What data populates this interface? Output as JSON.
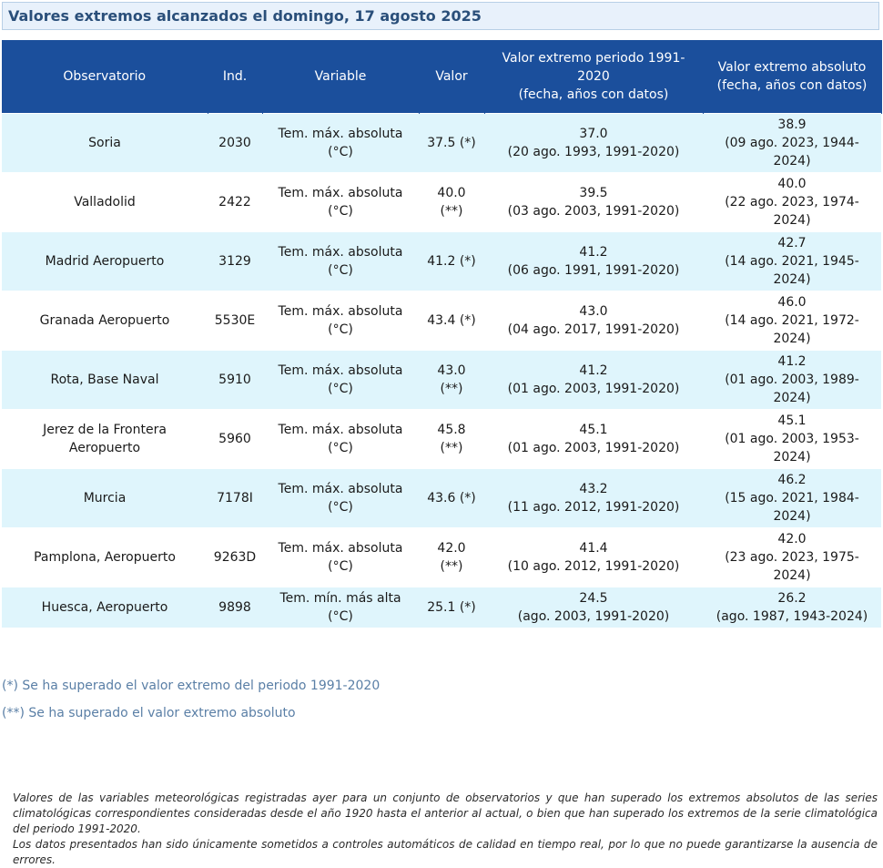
{
  "page_title": "Valores extremos alcanzados el domingo, 17 agosto 2025",
  "table": {
    "headers": {
      "observatorio": "Observatorio",
      "ind": "Ind.",
      "variable": "Variable",
      "valor": "Valor",
      "periodo_line1": "Valor extremo periodo 1991-",
      "periodo_line2": "2020",
      "periodo_line3": "(fecha, años con datos)",
      "absoluto_line1": "Valor extremo absoluto",
      "absoluto_line2": "(fecha, años con datos)"
    },
    "rows": [
      {
        "obs": [
          "Soria"
        ],
        "ind": "2030",
        "var": [
          "Tem. máx. absoluta",
          "(°C)"
        ],
        "valor": [
          "37.5 (*)"
        ],
        "periodo": [
          "37.0",
          "(20 ago. 1993, 1991-2020)"
        ],
        "absoluto": [
          "38.9",
          "(09 ago. 2023, 1944-",
          "2024)"
        ]
      },
      {
        "obs": [
          "Valladolid"
        ],
        "ind": "2422",
        "var": [
          "Tem. máx. absoluta",
          "(°C)"
        ],
        "valor": [
          "40.0",
          "(**)"
        ],
        "periodo": [
          "39.5",
          "(03 ago. 2003, 1991-2020)"
        ],
        "absoluto": [
          "40.0",
          "(22 ago. 2023, 1974-",
          "2024)"
        ]
      },
      {
        "obs": [
          "Madrid Aeropuerto"
        ],
        "ind": "3129",
        "var": [
          "Tem. máx. absoluta",
          "(°C)"
        ],
        "valor": [
          "41.2 (*)"
        ],
        "periodo": [
          "41.2",
          "(06 ago. 1991, 1991-2020)"
        ],
        "absoluto": [
          "42.7",
          "(14 ago. 2021, 1945-",
          "2024)"
        ]
      },
      {
        "obs": [
          "Granada Aeropuerto"
        ],
        "ind": "5530E",
        "var": [
          "Tem. máx. absoluta",
          "(°C)"
        ],
        "valor": [
          "43.4 (*)"
        ],
        "periodo": [
          "43.0",
          "(04 ago. 2017, 1991-2020)"
        ],
        "absoluto": [
          "46.0",
          "(14 ago. 2021, 1972-",
          "2024)"
        ]
      },
      {
        "obs": [
          "Rota, Base Naval"
        ],
        "ind": "5910",
        "var": [
          "Tem. máx. absoluta",
          "(°C)"
        ],
        "valor": [
          "43.0",
          "(**)"
        ],
        "periodo": [
          "41.2",
          "(01 ago. 2003, 1991-2020)"
        ],
        "absoluto": [
          "41.2",
          "(01 ago. 2003, 1989-",
          "2024)"
        ]
      },
      {
        "obs": [
          "Jerez de la Frontera",
          "Aeropuerto"
        ],
        "ind": "5960",
        "var": [
          "Tem. máx. absoluta",
          "(°C)"
        ],
        "valor": [
          "45.8",
          "(**)"
        ],
        "periodo": [
          "45.1",
          "(01 ago. 2003, 1991-2020)"
        ],
        "absoluto": [
          "45.1",
          "(01 ago. 2003, 1953-",
          "2024)"
        ]
      },
      {
        "obs": [
          "Murcia"
        ],
        "ind": "7178I",
        "var": [
          "Tem. máx. absoluta",
          "(°C)"
        ],
        "valor": [
          "43.6 (*)"
        ],
        "periodo": [
          "43.2",
          "(11 ago. 2012, 1991-2020)"
        ],
        "absoluto": [
          "46.2",
          "(15 ago. 2021, 1984-",
          "2024)"
        ]
      },
      {
        "obs": [
          "Pamplona, Aeropuerto"
        ],
        "ind": "9263D",
        "var": [
          "Tem. máx. absoluta",
          "(°C)"
        ],
        "valor": [
          "42.0",
          "(**)"
        ],
        "periodo": [
          "41.4",
          "(10 ago. 2012, 1991-2020)"
        ],
        "absoluto": [
          "42.0",
          "(23 ago. 2023, 1975-",
          "2024)"
        ]
      },
      {
        "obs": [
          "Huesca, Aeropuerto"
        ],
        "ind": "9898",
        "var": [
          "Tem. mín. más alta",
          "(°C)"
        ],
        "valor": [
          "25.1 (*)"
        ],
        "periodo": [
          "24.5",
          "(ago. 2003, 1991-2020)"
        ],
        "absoluto": [
          "26.2",
          "(ago. 1987, 1943-2024)"
        ]
      }
    ]
  },
  "legend": {
    "single_star": "(*) Se ha superado el valor extremo del periodo 1991-2020",
    "double_star": "(**) Se ha superado el valor extremo absoluto"
  },
  "footnote": {
    "paragraph1": "Valores de las variables meteorológicas registradas ayer para un conjunto de observatorios y que han superado los extremos absolutos de las series climatológicas correspondientes consideradas desde el año 1920 hasta el anterior al actual, o bien que han superado los extremos de la serie climatológica del periodo 1991-2020.",
    "paragraph2": "Los datos presentados han sido únicamente sometidos a controles automáticos de calidad en tiempo real, por lo que no puede garantizarse la ausencia de errores."
  },
  "colors": {
    "header_bg": "#1b4f9c",
    "row_odd_bg": "#dff5fc",
    "row_even_bg": "#ffffff",
    "title_color": "#2a4f7a",
    "legend_color": "#5a7fa6"
  }
}
